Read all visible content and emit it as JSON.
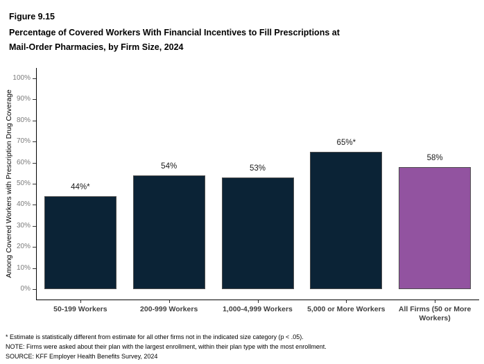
{
  "header": {
    "figure_number": "Figure 9.15",
    "title_lines": [
      "Percentage of Covered Workers With Financial Incentives to Fill Prescriptions at",
      "Mail-Order Pharmacies, by Firm Size, 2024"
    ]
  },
  "chart_data": {
    "type": "bar",
    "title": "Percentage of Covered Workers With Financial Incentives to Fill Prescriptions at Mail-Order Pharmacies, by Firm Size, 2024",
    "categories": [
      "50-199 Workers",
      "200-999 Workers",
      "1,000-4,999 Workers",
      "5,000 or More Workers",
      "All Firms (50 or More Workers)"
    ],
    "values": [
      44,
      54,
      53,
      65,
      58
    ],
    "value_labels": [
      "44%*",
      "54%",
      "53%",
      "65%*",
      "58%"
    ],
    "xlabel": "",
    "ylabel": "Among Covered Workers with Prescription Drug Coverage",
    "ylim": [
      0,
      100
    ],
    "ytick_step": 10,
    "ytick_labels": [
      "0%",
      "10%",
      "20%",
      "30%",
      "40%",
      "50%",
      "60%",
      "70%",
      "80%",
      "90%",
      "100%"
    ],
    "grid": false,
    "legend": false,
    "bar_colors": [
      "#0b2336",
      "#0b2336",
      "#0b2336",
      "#0b2336",
      "#9253a0"
    ]
  },
  "footnotes": [
    "* Estimate is statistically different from estimate for all other firms not in the indicated size category (p < .05).",
    "NOTE: Firms were asked about their plan with the largest enrollment, within their plan type with the most enrollment.",
    "SOURCE: KFF Employer Health Benefits Survey, 2024"
  ],
  "colors": {
    "bar_dark": "#0b2336",
    "bar_highlight": "#9253a0",
    "bar_border": "#4d4d4d",
    "axis_line": "#000000",
    "y_tick_label": "#7a7a7a",
    "x_tick_label": "#404040",
    "text": "#000000"
  }
}
